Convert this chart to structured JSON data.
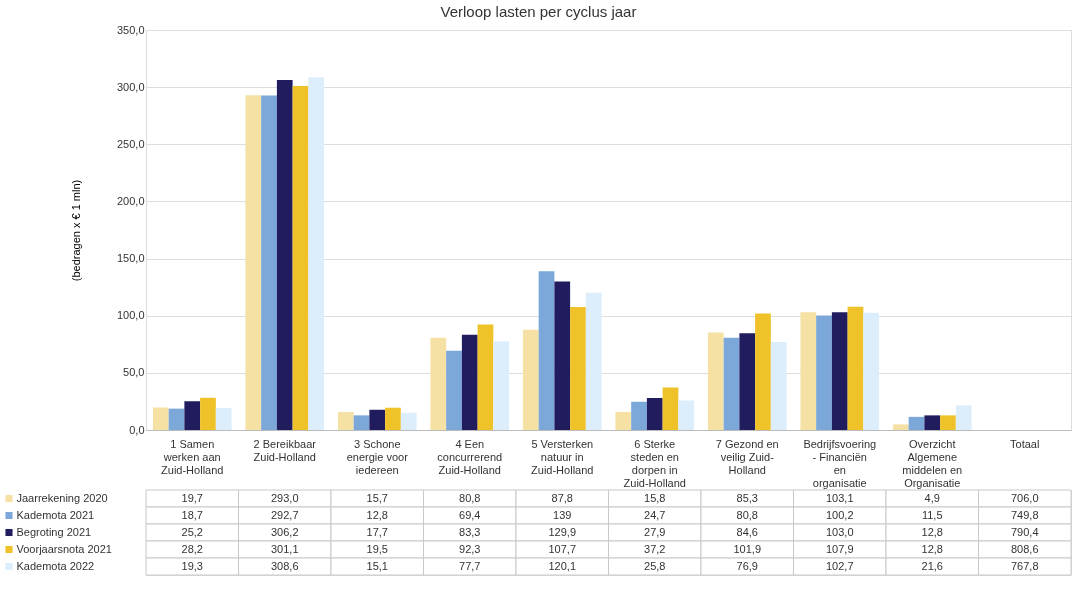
{
  "chart_data": {
    "type": "bar",
    "title": "Verloop lasten per cyclus jaar",
    "ylabel": "(bedragen x € 1 mln)",
    "categories": [
      "1 Samen werken aan Zuid-Holland",
      "2 Bereikbaar Zuid-Holland",
      "3 Schone energie voor iedereen",
      "4 Een concurrerend Zuid-Holland",
      "5 Versterken natuur in Zuid-Holland",
      "6 Sterke steden en dorpen in Zuid-Holland",
      "7 Gezond en veilig Zuid-Holland",
      "Bedrijfsvoering - Financiën en organisatie",
      "Overzicht Algemene middelen en Organisatie",
      "Totaal"
    ],
    "ylim": [
      0,
      350
    ],
    "yticks": [
      {
        "value": 0,
        "label": "0,0"
      },
      {
        "value": 50,
        "label": "50,0"
      },
      {
        "value": 100,
        "label": "100,0"
      },
      {
        "value": 150,
        "label": "150,0"
      },
      {
        "value": 200,
        "label": "200,0"
      },
      {
        "value": 250,
        "label": "250,0"
      },
      {
        "value": 300,
        "label": "300,0"
      },
      {
        "value": 350,
        "label": "350,0"
      }
    ],
    "grid": "y",
    "legend": "bottom left",
    "series": [
      {
        "name": "Jaarrekening 2020",
        "color": "#f5e1a4",
        "values": [
          19.7,
          293.0,
          15.7,
          80.8,
          87.8,
          15.8,
          85.3,
          103.1,
          4.9,
          null
        ],
        "value_labels": [
          "19,7",
          "293,0",
          "15,7",
          "80,8",
          "87,8",
          "15,8",
          "85,3",
          "103,1",
          "4,9",
          "706,0"
        ]
      },
      {
        "name": "Kademota 2021",
        "color": "#7ba7d9",
        "values": [
          18.7,
          292.7,
          12.8,
          69.4,
          139,
          24.7,
          80.8,
          100.2,
          11.5,
          null
        ],
        "value_labels": [
          "18,7",
          "292,7",
          "12,8",
          "69,4",
          "139",
          "24,7",
          "80,8",
          "100,2",
          "11,5",
          "749,8"
        ]
      },
      {
        "name": "Begroting 2021",
        "color": "#201c5e",
        "values": [
          25.2,
          306.2,
          17.7,
          83.3,
          129.9,
          27.9,
          84.6,
          103.0,
          12.8,
          null
        ],
        "value_labels": [
          "25,2",
          "306,2",
          "17,7",
          "83,3",
          "129,9",
          "27,9",
          "84,6",
          "103,0",
          "12,8",
          "790,4"
        ]
      },
      {
        "name": "Voorjaarsnota 2021",
        "color": "#f0c22a",
        "values": [
          28.2,
          301.1,
          19.5,
          92.3,
          107.7,
          37.2,
          101.9,
          107.9,
          12.8,
          null
        ],
        "value_labels": [
          "28,2",
          "301,1",
          "19,5",
          "92,3",
          "107,7",
          "37,2",
          "101,9",
          "107,9",
          "12,8",
          "808,6"
        ]
      },
      {
        "name": "Kademota 2022",
        "color": "#dcedfb",
        "values": [
          19.3,
          308.6,
          15.1,
          77.7,
          120.1,
          25.8,
          76.9,
          102.7,
          21.6,
          null
        ],
        "value_labels": [
          "19,3",
          "308,6",
          "15,1",
          "77,7",
          "120,1",
          "25,8",
          "76,9",
          "102,7",
          "21,6",
          "767,8"
        ]
      }
    ]
  }
}
